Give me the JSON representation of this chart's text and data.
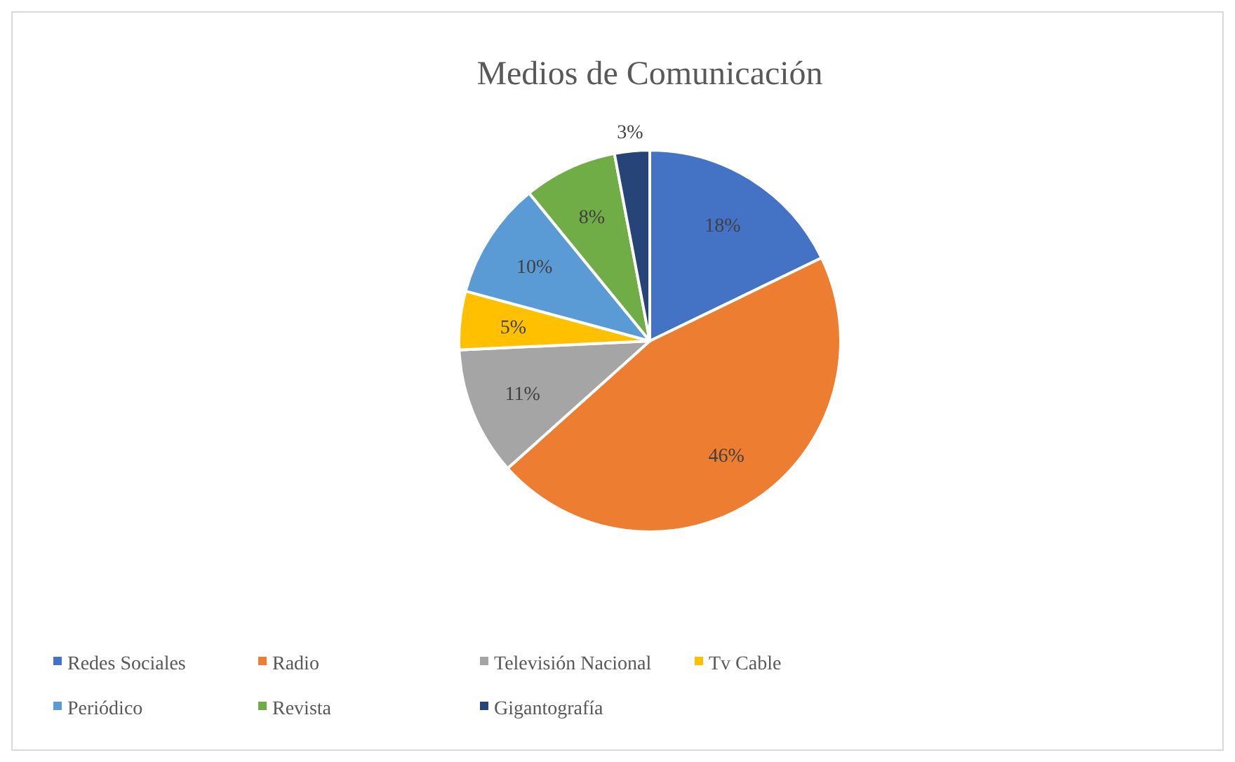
{
  "chart_data": {
    "type": "pie",
    "title": "Medios de Comunicación",
    "categories": [
      "Redes Sociales",
      "Radio",
      "Televisión Nacional",
      "Tv Cable",
      "Periódico",
      "Revista",
      "Gigantografía"
    ],
    "values": [
      18,
      46,
      11,
      5,
      10,
      8,
      3
    ],
    "colors": [
      "#4472c4",
      "#ed7d31",
      "#a5a5a5",
      "#ffc000",
      "#5b9bd5",
      "#70ad47",
      "#264478"
    ],
    "value_labels": [
      "18%",
      "46%",
      "11%",
      "5%",
      "10%",
      "8%",
      "3%"
    ],
    "legend": "bottom"
  }
}
